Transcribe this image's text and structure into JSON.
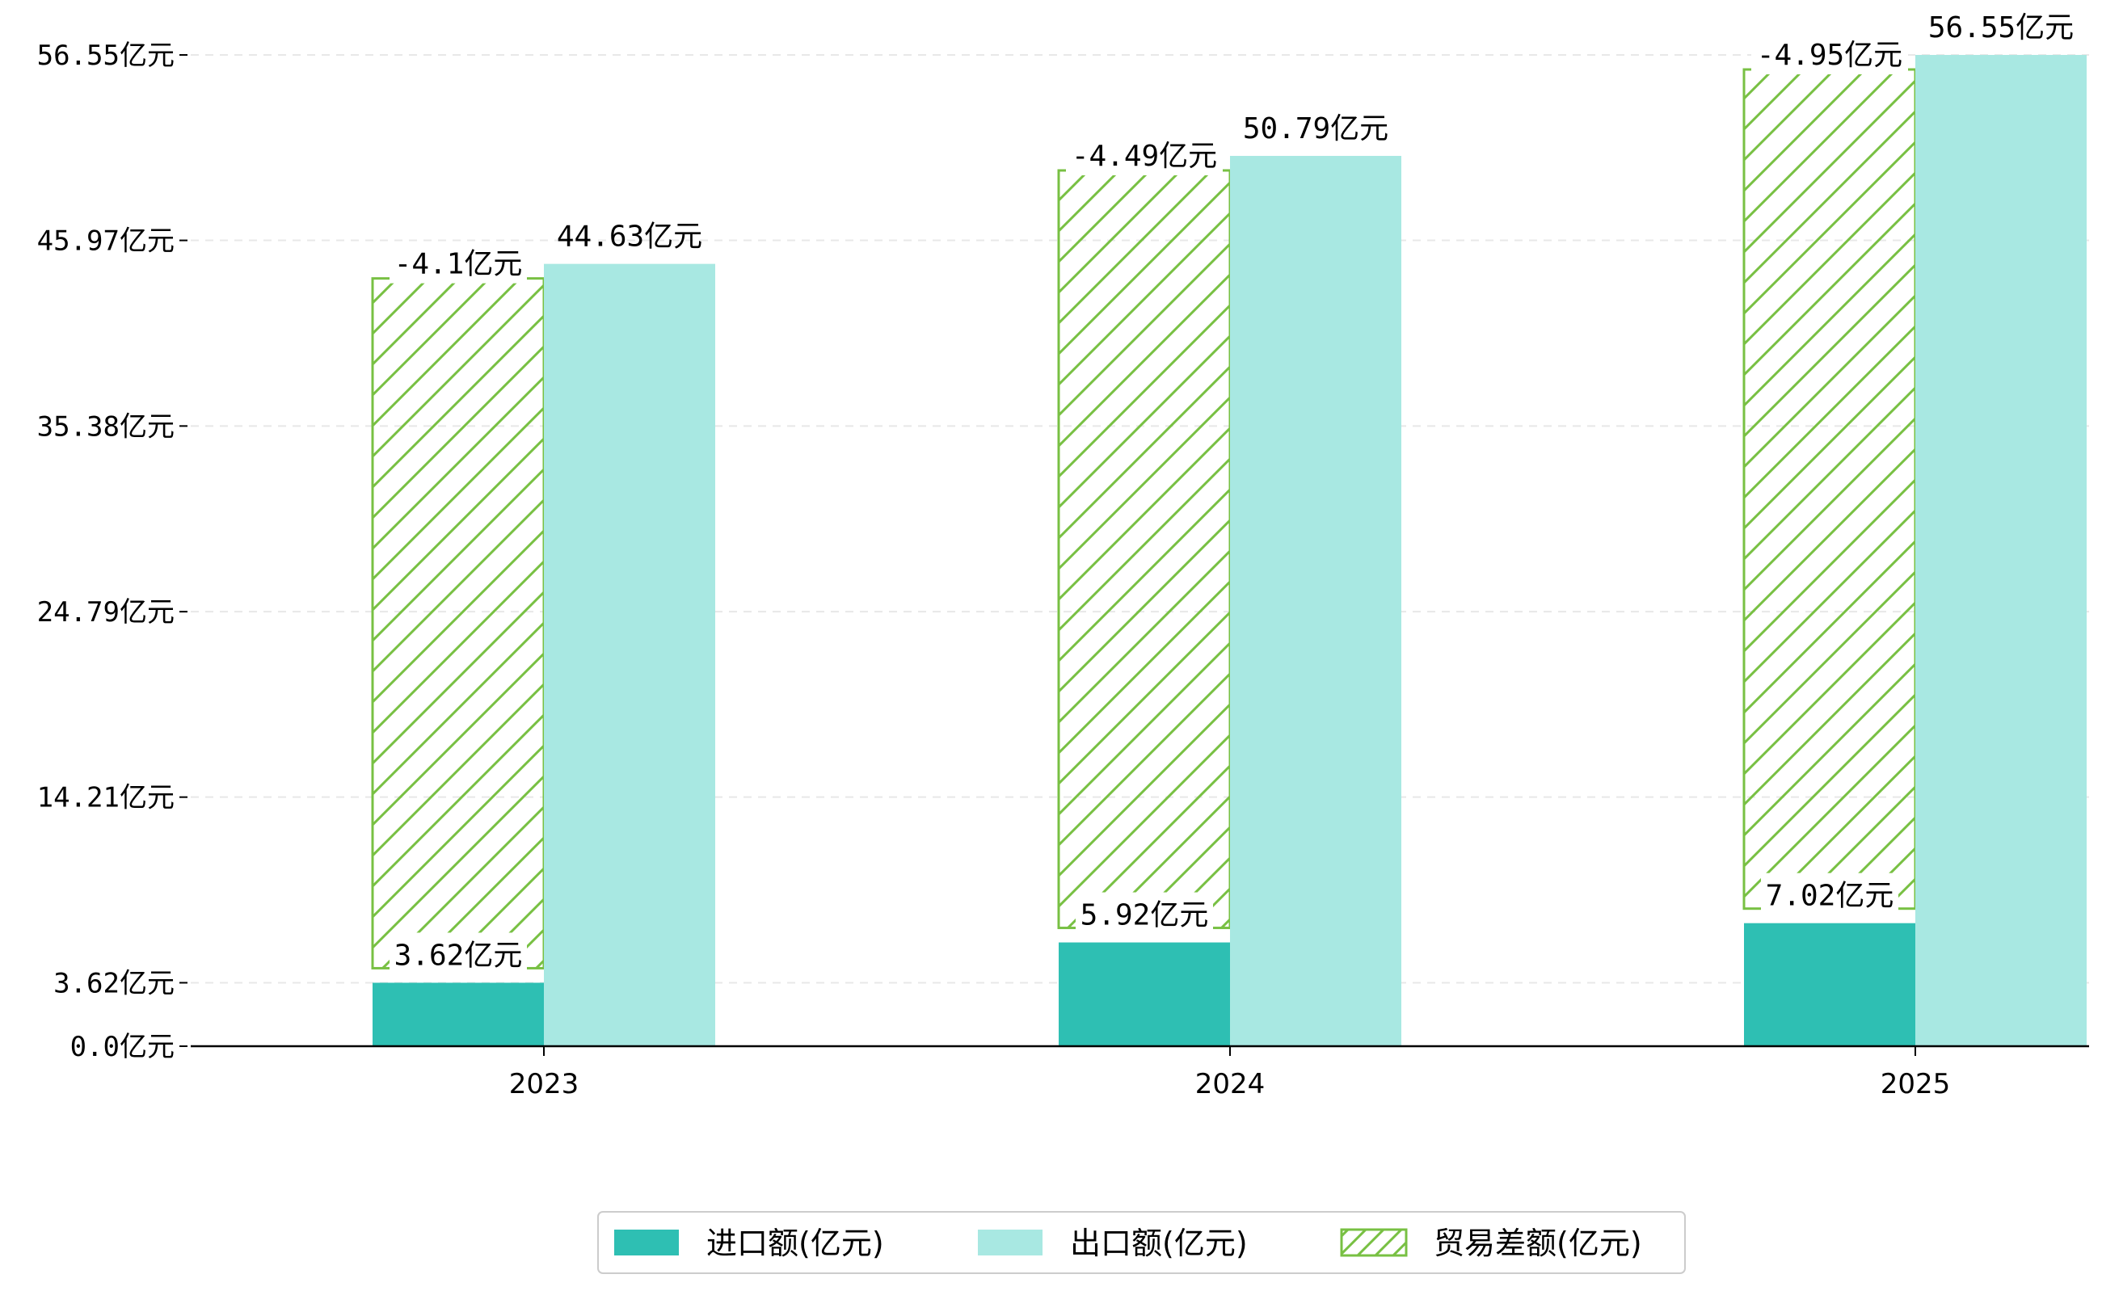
{
  "colors": {
    "import": "#2ebfb3",
    "export": "#a8e8e2",
    "balance": "#78c043",
    "grid": "#e8e8e8",
    "axis": "#000000"
  },
  "chart_data": {
    "type": "bar",
    "categories": [
      "2023",
      "2024",
      "2025"
    ],
    "series": [
      {
        "name": "进口额(亿元)",
        "values": [
          3.62,
          5.92,
          7.02
        ],
        "labels": [
          "3.62亿元",
          "5.92亿元",
          "7.02亿元"
        ]
      },
      {
        "name": "出口额(亿元)",
        "values": [
          44.63,
          50.79,
          56.55
        ],
        "labels": [
          "44.63亿元",
          "50.79亿元",
          "56.55亿元"
        ]
      },
      {
        "name": "贸易差额(亿元)",
        "values": [
          -4.1,
          -4.49,
          -4.95
        ],
        "labels": [
          "-4.1亿元",
          "-4.49亿元",
          "-4.95亿元"
        ]
      }
    ],
    "yticks": [
      "0.0亿元",
      "3.62亿元",
      "14.21亿元",
      "24.79亿元",
      "35.38亿元",
      "45.97亿元",
      "56.55亿元"
    ],
    "ytick_values": [
      0,
      3.62,
      14.21,
      24.79,
      35.38,
      45.97,
      56.55
    ],
    "ylim": [
      0,
      56.55
    ],
    "grid": true,
    "legend_position": "bottom-center",
    "title": "",
    "xlabel": "",
    "ylabel": ""
  }
}
